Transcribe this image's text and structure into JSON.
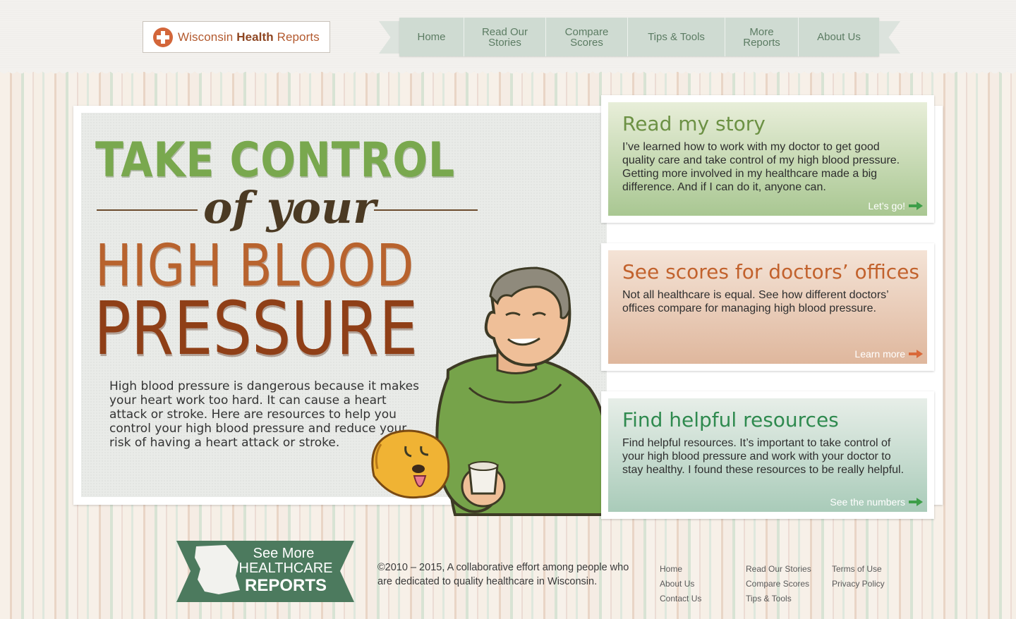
{
  "brand": {
    "name_regular": "Wisconsin ",
    "name_bold": "Health",
    "name_rest": " Reports",
    "accent_color": "#d3663a"
  },
  "nav": [
    {
      "line1": "Home",
      "line2": ""
    },
    {
      "line1": "Read Our",
      "line2": "Stories"
    },
    {
      "line1": "Compare",
      "line2": "Scores"
    },
    {
      "line1": "Tips & Tools",
      "line2": ""
    },
    {
      "line1": "More",
      "line2": "Reports"
    },
    {
      "line1": "About Us",
      "line2": ""
    }
  ],
  "hero": {
    "title_line1": "TAKE CONTROL",
    "title_line2": "of your",
    "title_line3": "HIGH BLOOD",
    "title_line4": "PRESSURE",
    "body": "High blood pressure is dangerous because it makes your heart work too hard. It can cause a heart attack or stroke. Here are resources to help you control your high blood pressure and reduce your risk of having a heart attack or stroke."
  },
  "cards": [
    {
      "title": "Read my story",
      "text": "I’ve learned how to work with my doctor to get good quality care and take control of my high blood pressure. Getting more involved in my healthcare made a big difference. And if I can do it, anyone can.",
      "link": "Let’s go!",
      "arrow_color": "#3e9e49"
    },
    {
      "title": "See scores for doctors’ offices",
      "text": "Not all healthcare is equal. See how different doctors’ offices compare for managing high blood pressure.",
      "link": "Learn more",
      "arrow_color": "#d9693a"
    },
    {
      "title": "Find helpful resources",
      "text": "Find helpful resources. It’s important to take control of your high blood pressure and work with your doctor to stay healthy. I found these resources to be really helpful.",
      "link": "See the numbers",
      "arrow_color": "#3e9e49"
    }
  ],
  "footer": {
    "badge_line1": "See More",
    "badge_line2": "HEALTHCARE",
    "badge_line3": "REPORTS",
    "copyright": "©2010 – 2015, A collaborative effort among people who are dedicated to quality healthcare in Wisconsin.",
    "col1": [
      "Home",
      "About Us",
      "Contact Us"
    ],
    "col2": [
      "Read Our Stories",
      "Compare Scores",
      "Tips & Tools"
    ],
    "col3": [
      "Terms of Use",
      "Privacy Policy"
    ]
  }
}
